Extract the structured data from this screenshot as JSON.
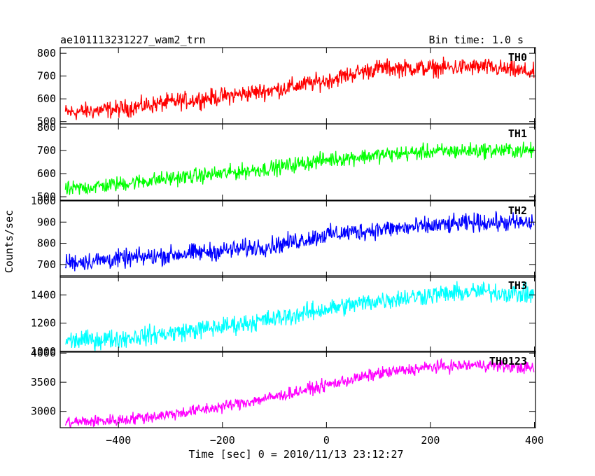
{
  "header": {
    "left_title": "ae101113231227_wam2_trn",
    "right_title": "Bin time: 1.0 s"
  },
  "axes": {
    "ylabel": "Counts/sec",
    "xlabel": "Time [sec] 0 = 2010/11/13 23:12:27"
  },
  "chart_data": {
    "type": "line",
    "title": "ae101113231227_wam2_trn",
    "subtitle": "Bin time: 1.0 s",
    "xlabel": "Time [sec] 0 = 2010/11/13 23:12:27",
    "ylabel": "Counts/sec",
    "xlim": [
      -512,
      402
    ],
    "x_ticks": [
      -400,
      -200,
      0,
      200,
      400
    ],
    "x_tick_labels": [
      "−400",
      "−200",
      "0",
      "200",
      "400"
    ],
    "grid": false,
    "legend": "none",
    "series_labels_position": "top-right of each panel",
    "panels": [
      {
        "name": "TH0",
        "color": "#ff0000",
        "ylim": [
          490,
          825
        ],
        "y_ticks": [
          500,
          600,
          700,
          800
        ],
        "x": [
          -500,
          -400,
          -300,
          -200,
          -100,
          0,
          50,
          100,
          200,
          300,
          400
        ],
        "y": [
          540,
          555,
          585,
          610,
          640,
          680,
          710,
          735,
          735,
          740,
          715
        ],
        "noise": 40
      },
      {
        "name": "TH1",
        "color": "#00ff00",
        "ylim": [
          485,
          815
        ],
        "y_ticks": [
          500,
          600,
          700,
          800
        ],
        "x": [
          -500,
          -400,
          -300,
          -200,
          -100,
          0,
          100,
          200,
          300,
          400
        ],
        "y": [
          530,
          555,
          580,
          600,
          625,
          660,
          680,
          695,
          700,
          700
        ],
        "noise": 35
      },
      {
        "name": "TH2",
        "color": "#0000ff",
        "ylim": [
          640,
          1000
        ],
        "y_ticks": [
          700,
          800,
          900,
          1000
        ],
        "x": [
          -500,
          -400,
          -300,
          -200,
          -100,
          0,
          100,
          200,
          300,
          400
        ],
        "y": [
          710,
          725,
          745,
          765,
          790,
          840,
          865,
          880,
          900,
          895
        ],
        "noise": 45
      },
      {
        "name": "TH3",
        "color": "#00ffff",
        "ylim": [
          995,
          1535
        ],
        "y_ticks": [
          1000,
          1200,
          1400
        ],
        "x": [
          -500,
          -400,
          -300,
          -200,
          -100,
          0,
          100,
          200,
          300,
          400
        ],
        "y": [
          1075,
          1090,
          1130,
          1175,
          1230,
          1300,
          1360,
          1400,
          1425,
          1400
        ],
        "noise": 70
      },
      {
        "name": "TH0123",
        "color": "#ff00ff",
        "ylim": [
          2720,
          4030
        ],
        "y_ticks": [
          3000,
          3500,
          4000
        ],
        "x": [
          -500,
          -400,
          -300,
          -200,
          -100,
          0,
          100,
          200,
          300,
          400
        ],
        "y": [
          2810,
          2850,
          2950,
          3080,
          3250,
          3450,
          3650,
          3760,
          3800,
          3740
        ],
        "noise": 110
      }
    ]
  }
}
